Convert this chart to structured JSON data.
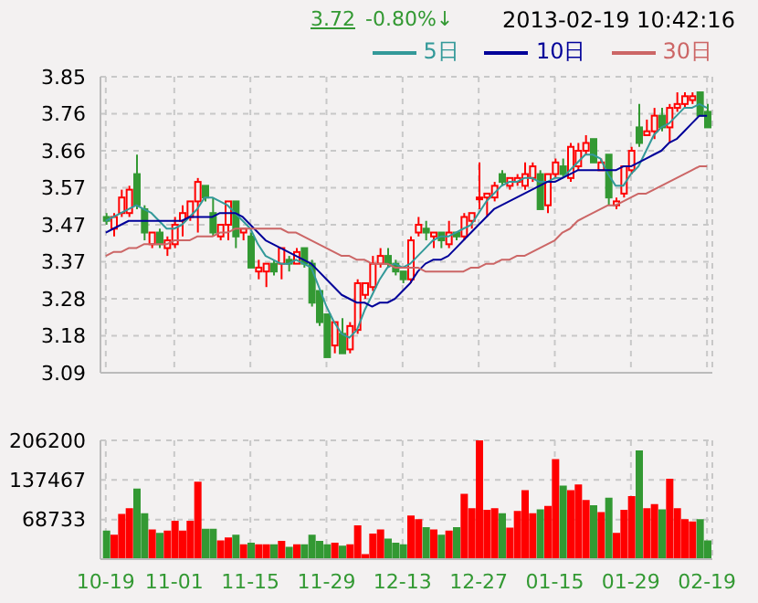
{
  "chart_data": [
    {
      "type": "candlestick",
      "annotations": [
        "3.72",
        "-0.80%↓",
        "2013-02-19 10:42:16"
      ],
      "categories": [
        null,
        null,
        null,
        null,
        null,
        null,
        null,
        null,
        null,
        null,
        null,
        null,
        null,
        null,
        null,
        null,
        null,
        null,
        null,
        null,
        null,
        null,
        null,
        null,
        null,
        null,
        null,
        null,
        null,
        null,
        null,
        null,
        null,
        null,
        null,
        null,
        null,
        null,
        null,
        null,
        null,
        null,
        null,
        null,
        null,
        null,
        null,
        null,
        null,
        null,
        null,
        null,
        null,
        null,
        null,
        null,
        null,
        null,
        null,
        null,
        null,
        null,
        null,
        null,
        null,
        null,
        null,
        null,
        null,
        null,
        null,
        null,
        null,
        null,
        null,
        null,
        null,
        null,
        null,
        null
      ],
      "ohlc": [
        [
          3.49,
          3.5,
          3.47,
          3.48
        ],
        [
          3.46,
          3.5,
          3.44,
          3.49
        ],
        [
          3.5,
          3.56,
          3.49,
          3.54
        ],
        [
          3.5,
          3.57,
          3.49,
          3.56
        ],
        [
          3.6,
          3.65,
          3.51,
          3.52
        ],
        [
          3.51,
          3.52,
          3.43,
          3.45
        ],
        [
          3.42,
          3.45,
          3.41,
          3.45
        ],
        [
          3.45,
          3.46,
          3.41,
          3.42
        ],
        [
          3.41,
          3.44,
          3.39,
          3.43
        ],
        [
          3.42,
          3.49,
          3.41,
          3.47
        ],
        [
          3.48,
          3.52,
          3.44,
          3.5
        ],
        [
          3.49,
          3.53,
          3.48,
          3.53
        ],
        [
          3.53,
          3.59,
          3.45,
          3.58
        ],
        [
          3.57,
          3.57,
          3.53,
          3.54
        ],
        [
          3.5,
          3.54,
          3.44,
          3.45
        ],
        [
          3.44,
          3.47,
          3.43,
          3.47
        ],
        [
          3.47,
          3.53,
          3.43,
          3.53
        ],
        [
          3.53,
          3.53,
          3.41,
          3.44
        ],
        [
          3.45,
          3.46,
          3.43,
          3.46
        ],
        [
          3.44,
          3.45,
          3.36,
          3.36
        ],
        [
          3.35,
          3.38,
          3.33,
          3.36
        ],
        [
          3.35,
          3.37,
          3.31,
          3.37
        ],
        [
          3.37,
          3.38,
          3.34,
          3.35
        ],
        [
          3.37,
          3.41,
          3.33,
          3.41
        ],
        [
          3.38,
          3.39,
          3.35,
          3.37
        ],
        [
          3.37,
          3.41,
          3.37,
          3.4
        ],
        [
          3.41,
          3.41,
          3.36,
          3.37
        ],
        [
          3.37,
          3.38,
          3.26,
          3.27
        ],
        [
          3.3,
          3.3,
          3.21,
          3.22
        ],
        [
          3.24,
          3.24,
          3.13,
          3.13
        ],
        [
          3.16,
          3.22,
          3.14,
          3.22
        ],
        [
          3.19,
          3.23,
          3.14,
          3.14
        ],
        [
          3.15,
          3.22,
          3.14,
          3.21
        ],
        [
          3.2,
          3.33,
          3.19,
          3.32
        ],
        [
          3.29,
          3.32,
          3.28,
          3.32
        ],
        [
          3.31,
          3.39,
          3.3,
          3.37
        ],
        [
          3.37,
          3.41,
          3.36,
          3.39
        ],
        [
          3.39,
          3.41,
          3.36,
          3.37
        ],
        [
          3.37,
          3.38,
          3.34,
          3.35
        ],
        [
          3.35,
          3.35,
          3.32,
          3.33
        ],
        [
          3.33,
          3.44,
          3.32,
          3.43
        ],
        [
          3.45,
          3.49,
          3.44,
          3.47
        ],
        [
          3.46,
          3.48,
          3.43,
          3.45
        ],
        [
          3.44,
          3.45,
          3.41,
          3.45
        ],
        [
          3.45,
          3.45,
          3.41,
          3.43
        ],
        [
          3.42,
          3.48,
          3.41,
          3.45
        ],
        [
          3.45,
          3.45,
          3.43,
          3.44
        ],
        [
          3.44,
          3.5,
          3.43,
          3.49
        ],
        [
          3.48,
          3.5,
          3.46,
          3.5
        ],
        [
          3.54,
          3.63,
          3.51,
          3.54
        ],
        [
          3.54,
          3.55,
          3.49,
          3.55
        ],
        [
          3.54,
          3.58,
          3.53,
          3.57
        ],
        [
          3.6,
          3.61,
          3.57,
          3.58
        ],
        [
          3.57,
          3.59,
          3.56,
          3.59
        ],
        [
          3.58,
          3.6,
          3.57,
          3.59
        ],
        [
          3.57,
          3.63,
          3.56,
          3.6
        ],
        [
          3.59,
          3.63,
          3.58,
          3.62
        ],
        [
          3.6,
          3.61,
          3.51,
          3.51
        ],
        [
          3.52,
          3.6,
          3.5,
          3.6
        ],
        [
          3.6,
          3.64,
          3.59,
          3.63
        ],
        [
          3.62,
          3.64,
          3.59,
          3.6
        ],
        [
          3.59,
          3.68,
          3.58,
          3.67
        ],
        [
          3.62,
          3.68,
          3.61,
          3.66
        ],
        [
          3.66,
          3.7,
          3.65,
          3.68
        ],
        [
          3.69,
          3.69,
          3.63,
          3.63
        ],
        [
          3.61,
          3.64,
          3.61,
          3.63
        ],
        [
          3.65,
          3.65,
          3.52,
          3.54
        ],
        [
          3.52,
          3.54,
          3.51,
          3.53
        ],
        [
          3.55,
          3.62,
          3.54,
          3.62
        ],
        [
          3.61,
          3.67,
          3.6,
          3.66
        ],
        [
          3.72,
          3.78,
          3.67,
          3.68
        ],
        [
          3.7,
          3.74,
          3.7,
          3.71
        ],
        [
          3.71,
          3.77,
          3.69,
          3.75
        ],
        [
          3.75,
          3.77,
          3.71,
          3.72
        ],
        [
          3.72,
          3.78,
          3.68,
          3.77
        ],
        [
          3.77,
          3.81,
          3.76,
          3.78
        ],
        [
          3.78,
          3.81,
          3.77,
          3.8
        ],
        [
          3.79,
          3.81,
          3.78,
          3.8
        ],
        [
          3.81,
          3.81,
          3.75,
          3.75
        ],
        [
          3.76,
          3.78,
          3.72,
          3.72
        ]
      ],
      "colors": [
        "#339933",
        "#ff0000",
        "#ff0000",
        "#ff0000",
        "#339933",
        "#339933",
        "#ff0000",
        "#339933",
        "#ff0000",
        "#ff0000",
        "#ff0000",
        "#ff0000",
        "#ff0000",
        "#339933",
        "#339933",
        "#ff0000",
        "#ff0000",
        "#339933",
        "#ff0000",
        "#339933",
        "#ff0000",
        "#ff0000",
        "#339933",
        "#ff0000",
        "#339933",
        "#ff0000",
        "#339933",
        "#339933",
        "#339933",
        "#339933",
        "#ff0000",
        "#339933",
        "#ff0000",
        "#ff0000",
        "#ff0000",
        "#ff0000",
        "#ff0000",
        "#339933",
        "#339933",
        "#339933",
        "#ff0000",
        "#ff0000",
        "#339933",
        "#ff0000",
        "#339933",
        "#ff0000",
        "#339933",
        "#ff0000",
        "#ff0000",
        "#ff0000",
        "#ff0000",
        "#ff0000",
        "#339933",
        "#ff0000",
        "#ff0000",
        "#ff0000",
        "#ff0000",
        "#339933",
        "#ff0000",
        "#ff0000",
        "#339933",
        "#ff0000",
        "#ff0000",
        "#ff0000",
        "#339933",
        "#ff0000",
        "#339933",
        "#ff0000",
        "#ff0000",
        "#ff0000",
        "#339933",
        "#ff0000",
        "#ff0000",
        "#339933",
        "#ff0000",
        "#ff0000",
        "#ff0000",
        "#ff0000",
        "#339933",
        "#339933"
      ],
      "series": [
        {
          "type": "line",
          "name": "5日",
          "color": "#339999",
          "values": [
            3.48,
            3.49,
            3.5,
            3.51,
            3.52,
            3.51,
            3.5,
            3.48,
            3.46,
            3.46,
            3.47,
            3.49,
            3.51,
            3.54,
            3.54,
            3.53,
            3.52,
            3.5,
            3.48,
            3.46,
            3.42,
            3.39,
            3.38,
            3.37,
            3.37,
            3.38,
            3.37,
            3.36,
            3.31,
            3.26,
            3.22,
            3.19,
            3.18,
            3.2,
            3.25,
            3.29,
            3.33,
            3.36,
            3.37,
            3.36,
            3.37,
            3.39,
            3.41,
            3.43,
            3.44,
            3.44,
            3.45,
            3.46,
            3.47,
            3.5,
            3.53,
            3.55,
            3.57,
            3.58,
            3.58,
            3.59,
            3.59,
            3.58,
            3.58,
            3.59,
            3.59,
            3.61,
            3.63,
            3.65,
            3.65,
            3.64,
            3.6,
            3.57,
            3.57,
            3.6,
            3.62,
            3.66,
            3.7,
            3.72,
            3.73,
            3.75,
            3.77,
            3.77,
            3.78,
            3.77
          ]
        },
        {
          "type": "line",
          "name": "10日",
          "color": "#000099",
          "values": [
            3.45,
            3.46,
            3.47,
            3.48,
            3.48,
            3.48,
            3.48,
            3.48,
            3.48,
            3.48,
            3.48,
            3.49,
            3.49,
            3.49,
            3.49,
            3.5,
            3.5,
            3.5,
            3.49,
            3.47,
            3.45,
            3.43,
            3.42,
            3.41,
            3.4,
            3.39,
            3.38,
            3.37,
            3.35,
            3.33,
            3.31,
            3.29,
            3.28,
            3.27,
            3.27,
            3.26,
            3.27,
            3.27,
            3.28,
            3.3,
            3.32,
            3.35,
            3.37,
            3.38,
            3.38,
            3.39,
            3.41,
            3.43,
            3.45,
            3.47,
            3.49,
            3.51,
            3.52,
            3.53,
            3.54,
            3.55,
            3.56,
            3.57,
            3.58,
            3.58,
            3.59,
            3.6,
            3.61,
            3.61,
            3.61,
            3.61,
            3.61,
            3.61,
            3.62,
            3.62,
            3.63,
            3.64,
            3.65,
            3.66,
            3.68,
            3.69,
            3.71,
            3.73,
            3.75,
            3.75
          ]
        },
        {
          "type": "line",
          "name": "30日",
          "color": "#cc6666",
          "values": [
            3.39,
            3.4,
            3.4,
            3.41,
            3.41,
            3.42,
            3.42,
            3.42,
            3.42,
            3.43,
            3.43,
            3.43,
            3.44,
            3.44,
            3.44,
            3.45,
            3.45,
            3.46,
            3.46,
            3.46,
            3.46,
            3.46,
            3.46,
            3.46,
            3.45,
            3.45,
            3.44,
            3.43,
            3.42,
            3.41,
            3.4,
            3.39,
            3.39,
            3.38,
            3.38,
            3.37,
            3.37,
            3.37,
            3.36,
            3.36,
            3.36,
            3.36,
            3.35,
            3.35,
            3.35,
            3.35,
            3.35,
            3.35,
            3.36,
            3.36,
            3.37,
            3.37,
            3.38,
            3.38,
            3.39,
            3.39,
            3.4,
            3.41,
            3.42,
            3.43,
            3.45,
            3.46,
            3.48,
            3.49,
            3.5,
            3.51,
            3.52,
            3.52,
            3.53,
            3.54,
            3.55,
            3.55,
            3.56,
            3.57,
            3.58,
            3.59,
            3.6,
            3.61,
            3.62,
            3.62
          ]
        }
      ],
      "ylim": [
        3.09,
        3.85
      ],
      "yticks": [
        3.09,
        {
          "value": 3.185,
          "label": "3.18"
        },
        3.28,
        {
          "value": 3.375,
          "label": "3.37"
        },
        3.47,
        {
          "value": 3.565,
          "label": "3.57"
        },
        3.66,
        {
          "value": 3.755,
          "label": "3.76"
        },
        3.85
      ],
      "grid": true,
      "legend": "top right",
      "marker": "none"
    },
    {
      "type": "bar",
      "categories": [
        "10-19",
        null,
        null,
        null,
        null,
        null,
        null,
        null,
        null,
        "11-01",
        null,
        null,
        null,
        null,
        null,
        null,
        null,
        null,
        null,
        "11-15",
        null,
        null,
        null,
        null,
        null,
        null,
        null,
        null,
        null,
        "11-29",
        null,
        null,
        null,
        null,
        null,
        null,
        null,
        null,
        null,
        "12-13",
        null,
        null,
        null,
        null,
        null,
        null,
        null,
        null,
        null,
        "12-27",
        null,
        null,
        null,
        null,
        null,
        null,
        null,
        null,
        null,
        "01-15",
        null,
        null,
        null,
        null,
        null,
        null,
        null,
        null,
        null,
        "01-29",
        null,
        null,
        null,
        null,
        null,
        null,
        null,
        null,
        null,
        "02-19"
      ],
      "values": [
        48000,
        41000,
        77000,
        87000,
        121000,
        78000,
        50000,
        44000,
        48000,
        65000,
        48000,
        65000,
        133000,
        51000,
        51000,
        31000,
        36000,
        41000,
        24000,
        27000,
        24000,
        24000,
        24000,
        30000,
        20000,
        24000,
        24000,
        41000,
        30000,
        24000,
        27000,
        22000,
        24000,
        57000,
        7000,
        43000,
        50000,
        34000,
        27000,
        24000,
        74000,
        68000,
        54000,
        50000,
        41000,
        48000,
        54000,
        112000,
        87000,
        206000,
        84000,
        87000,
        78000,
        53000,
        82000,
        118000,
        78000,
        85000,
        91000,
        172000,
        126000,
        118000,
        128000,
        101000,
        92000,
        80000,
        105000,
        44000,
        84000,
        108000,
        187000,
        87000,
        94000,
        85000,
        138000,
        87000,
        68000,
        64000,
        68000,
        31000
      ],
      "colors": [
        "#339933",
        "#ff0000",
        "#ff0000",
        "#ff0000",
        "#339933",
        "#339933",
        "#ff0000",
        "#339933",
        "#ff0000",
        "#ff0000",
        "#ff0000",
        "#ff0000",
        "#ff0000",
        "#339933",
        "#339933",
        "#ff0000",
        "#ff0000",
        "#339933",
        "#ff0000",
        "#339933",
        "#ff0000",
        "#ff0000",
        "#339933",
        "#ff0000",
        "#339933",
        "#ff0000",
        "#339933",
        "#339933",
        "#339933",
        "#339933",
        "#ff0000",
        "#339933",
        "#ff0000",
        "#ff0000",
        "#ff0000",
        "#ff0000",
        "#ff0000",
        "#339933",
        "#339933",
        "#339933",
        "#ff0000",
        "#ff0000",
        "#339933",
        "#ff0000",
        "#339933",
        "#ff0000",
        "#339933",
        "#ff0000",
        "#ff0000",
        "#ff0000",
        "#ff0000",
        "#ff0000",
        "#339933",
        "#ff0000",
        "#ff0000",
        "#ff0000",
        "#ff0000",
        "#339933",
        "#ff0000",
        "#ff0000",
        "#339933",
        "#ff0000",
        "#ff0000",
        "#ff0000",
        "#339933",
        "#ff0000",
        "#339933",
        "#ff0000",
        "#ff0000",
        "#ff0000",
        "#339933",
        "#ff0000",
        "#ff0000",
        "#339933",
        "#ff0000",
        "#ff0000",
        "#ff0000",
        "#ff0000",
        "#339933",
        "#339933"
      ],
      "ylim": [
        0,
        206200
      ],
      "yticks": [
        68733,
        137467,
        206200
      ],
      "grid": true
    }
  ]
}
